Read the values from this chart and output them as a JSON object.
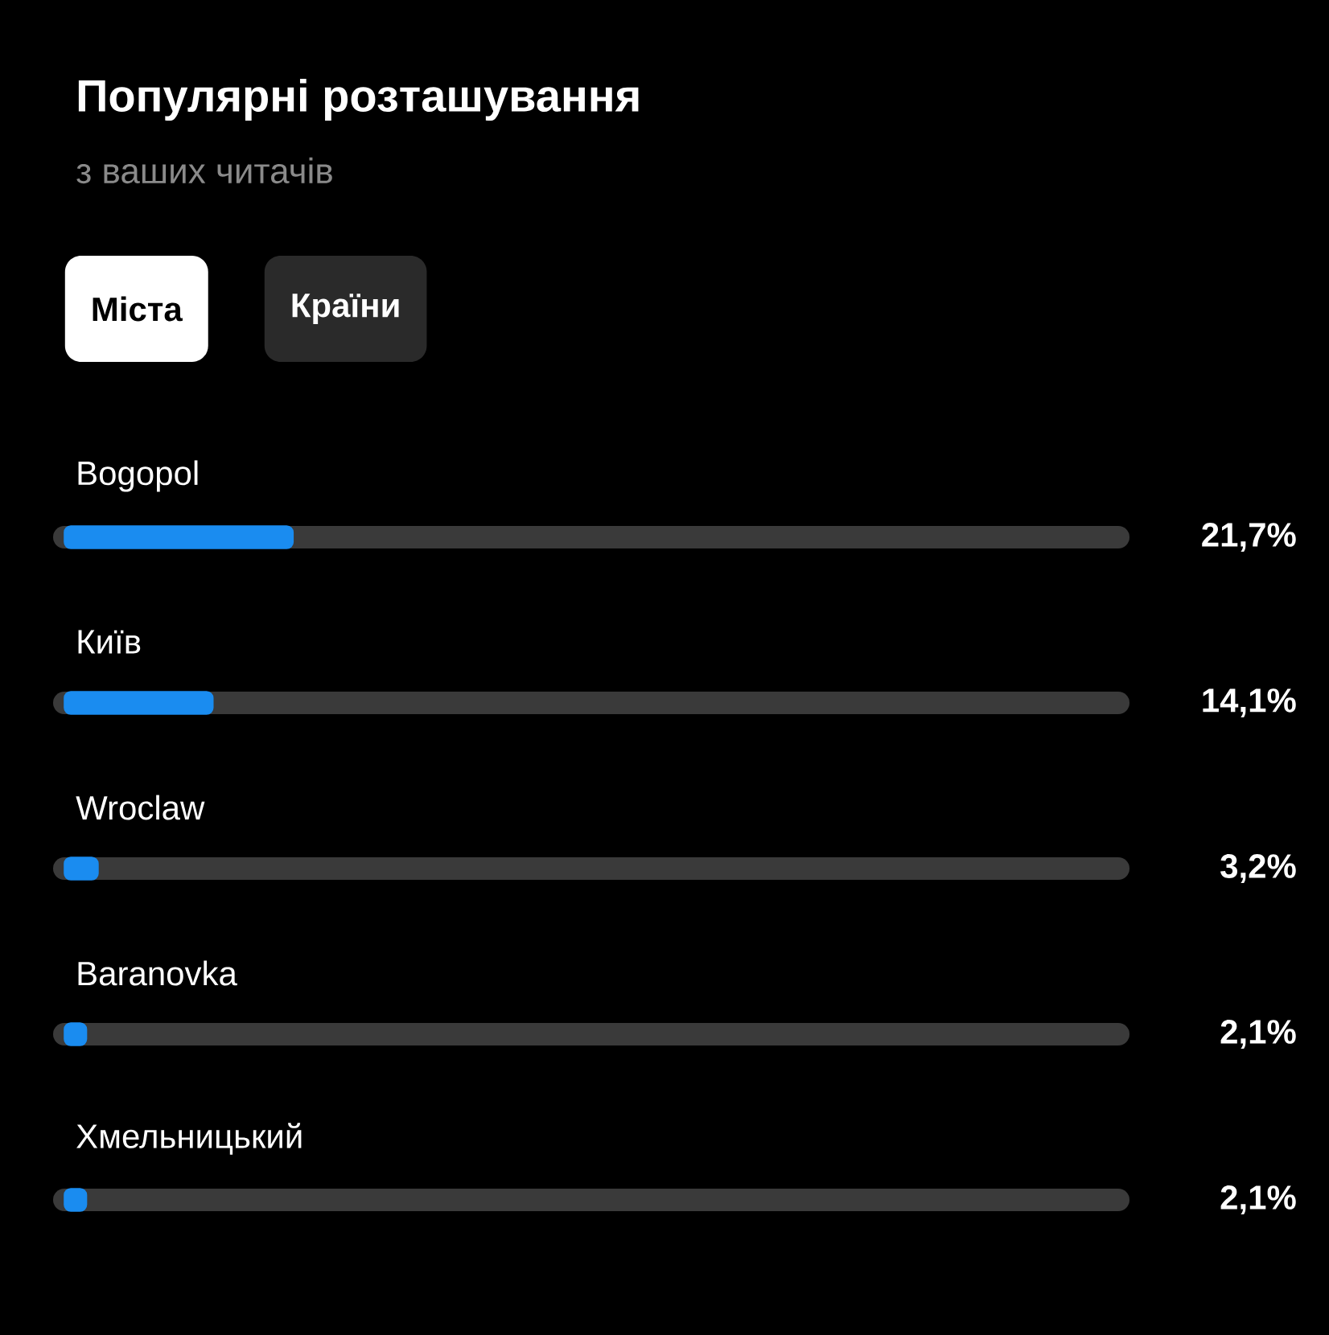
{
  "chart_data": {
    "type": "bar",
    "orientation": "horizontal",
    "title": "Популярні розташування",
    "subtitle": "з ваших читачів",
    "annotations": [
      "Міста",
      "Країни"
    ],
    "categories": [
      "Bogopol",
      "Київ",
      "Wroclaw",
      "Baranovka",
      "Хмельницький"
    ],
    "values": [
      21.7,
      14.1,
      3.2,
      2.1,
      2.1
    ],
    "value_labels": [
      "21,7%",
      "14,1%",
      "3,2%",
      "2,1%",
      "2,1%"
    ],
    "color": "#1a8cf0",
    "xlim": [
      0,
      100
    ]
  }
}
